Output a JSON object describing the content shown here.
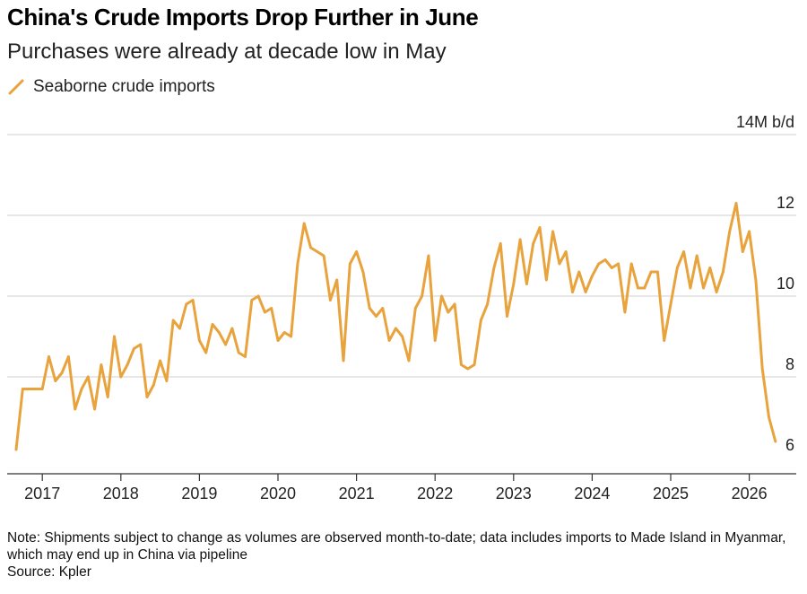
{
  "header": {
    "title": "China's Crude Imports Drop Further in June",
    "subtitle": "Purchases were already at decade low in May"
  },
  "legend": {
    "label": "Seaborne crude imports"
  },
  "footer": {
    "note": "Note: Shipments subject to change as volumes are observed month-to-date; data includes imports to Made Island in Myanmar, which may end up in China via pipeline",
    "source": "Source: Kpler"
  },
  "colors": {
    "series": "#e8a33d",
    "grid": "#cfcfcf",
    "axis": "#333333"
  },
  "chart_data": {
    "type": "line",
    "title": "China's Crude Imports Drop Further in June",
    "subtitle": "Purchases were already at decade low in May",
    "unit_label": "14M b/d",
    "ylim": [
      6,
      14
    ],
    "y_ticks": [
      {
        "value": 14,
        "label": "14M b/d"
      },
      {
        "value": 12,
        "label": "12"
      },
      {
        "value": 10,
        "label": "10"
      },
      {
        "value": 8,
        "label": "8"
      },
      {
        "value": 6,
        "label": "6"
      }
    ],
    "x_ticks": [
      "2017",
      "2018",
      "2019",
      "2020",
      "2021",
      "2022",
      "2023",
      "2024",
      "2025",
      "2026"
    ],
    "x_range": [
      "2016-09",
      "2026-06"
    ],
    "grid": true,
    "legend_position": "top-left",
    "series": [
      {
        "name": "Seaborne crude imports",
        "color": "#e8a33d",
        "points": [
          [
            "2016-09",
            6.2
          ],
          [
            "2016-10",
            7.7
          ],
          [
            "2016-11",
            7.7
          ],
          [
            "2016-12",
            7.7
          ],
          [
            "2017-01",
            7.7
          ],
          [
            "2017-02",
            8.5
          ],
          [
            "2017-03",
            7.9
          ],
          [
            "2017-04",
            8.1
          ],
          [
            "2017-05",
            8.5
          ],
          [
            "2017-06",
            7.2
          ],
          [
            "2017-07",
            7.7
          ],
          [
            "2017-08",
            8.0
          ],
          [
            "2017-09",
            7.2
          ],
          [
            "2017-10",
            8.3
          ],
          [
            "2017-11",
            7.5
          ],
          [
            "2017-12",
            9.0
          ],
          [
            "2018-01",
            8.0
          ],
          [
            "2018-02",
            8.3
          ],
          [
            "2018-03",
            8.7
          ],
          [
            "2018-04",
            8.8
          ],
          [
            "2018-05",
            7.5
          ],
          [
            "2018-06",
            7.8
          ],
          [
            "2018-07",
            8.4
          ],
          [
            "2018-08",
            7.9
          ],
          [
            "2018-09",
            9.4
          ],
          [
            "2018-10",
            9.2
          ],
          [
            "2018-11",
            9.8
          ],
          [
            "2018-12",
            9.9
          ],
          [
            "2019-01",
            8.9
          ],
          [
            "2019-02",
            8.6
          ],
          [
            "2019-03",
            9.3
          ],
          [
            "2019-04",
            9.1
          ],
          [
            "2019-05",
            8.8
          ],
          [
            "2019-06",
            9.2
          ],
          [
            "2019-07",
            8.6
          ],
          [
            "2019-08",
            8.5
          ],
          [
            "2019-09",
            9.9
          ],
          [
            "2019-10",
            10.0
          ],
          [
            "2019-11",
            9.6
          ],
          [
            "2019-12",
            9.7
          ],
          [
            "2020-01",
            8.9
          ],
          [
            "2020-02",
            9.1
          ],
          [
            "2020-03",
            9.0
          ],
          [
            "2020-04",
            10.8
          ],
          [
            "2020-05",
            11.8
          ],
          [
            "2020-06",
            11.2
          ],
          [
            "2020-07",
            11.1
          ],
          [
            "2020-08",
            11.0
          ],
          [
            "2020-09",
            9.9
          ],
          [
            "2020-10",
            10.4
          ],
          [
            "2020-11",
            8.4
          ],
          [
            "2020-12",
            10.8
          ],
          [
            "2021-01",
            11.1
          ],
          [
            "2021-02",
            10.6
          ],
          [
            "2021-03",
            9.7
          ],
          [
            "2021-04",
            9.5
          ],
          [
            "2021-05",
            9.7
          ],
          [
            "2021-06",
            8.9
          ],
          [
            "2021-07",
            9.2
          ],
          [
            "2021-08",
            9.0
          ],
          [
            "2021-09",
            8.4
          ],
          [
            "2021-10",
            9.7
          ],
          [
            "2021-11",
            10.0
          ],
          [
            "2021-12",
            11.0
          ],
          [
            "2022-01",
            8.9
          ],
          [
            "2022-02",
            10.0
          ],
          [
            "2022-03",
            9.6
          ],
          [
            "2022-04",
            9.8
          ],
          [
            "2022-05",
            8.3
          ],
          [
            "2022-06",
            8.2
          ],
          [
            "2022-07",
            8.3
          ],
          [
            "2022-08",
            9.4
          ],
          [
            "2022-09",
            9.8
          ],
          [
            "2022-10",
            10.7
          ],
          [
            "2022-11",
            11.3
          ],
          [
            "2022-12",
            9.5
          ],
          [
            "2023-01",
            10.3
          ],
          [
            "2023-02",
            11.4
          ],
          [
            "2023-03",
            10.3
          ],
          [
            "2023-04",
            11.3
          ],
          [
            "2023-05",
            11.7
          ],
          [
            "2023-06",
            10.4
          ],
          [
            "2023-07",
            11.6
          ],
          [
            "2023-08",
            10.8
          ],
          [
            "2023-09",
            11.1
          ],
          [
            "2023-10",
            10.1
          ],
          [
            "2023-11",
            10.6
          ],
          [
            "2023-12",
            10.1
          ],
          [
            "2024-01",
            10.5
          ],
          [
            "2024-02",
            10.8
          ],
          [
            "2024-03",
            10.9
          ],
          [
            "2024-04",
            10.7
          ],
          [
            "2024-05",
            10.8
          ],
          [
            "2024-06",
            9.6
          ],
          [
            "2024-07",
            10.8
          ],
          [
            "2024-08",
            10.2
          ],
          [
            "2024-09",
            10.2
          ],
          [
            "2024-10",
            10.6
          ],
          [
            "2024-11",
            10.6
          ],
          [
            "2024-12",
            8.9
          ],
          [
            "2025-01",
            9.8
          ],
          [
            "2025-02",
            10.7
          ],
          [
            "2025-03",
            11.1
          ],
          [
            "2025-04",
            10.2
          ],
          [
            "2025-05",
            11.0
          ],
          [
            "2025-06",
            10.2
          ],
          [
            "2025-07",
            10.7
          ],
          [
            "2025-08",
            10.1
          ],
          [
            "2025-09",
            10.6
          ],
          [
            "2025-10",
            11.6
          ],
          [
            "2025-11",
            12.3
          ],
          [
            "2025-12",
            11.1
          ],
          [
            "2026-01",
            11.6
          ],
          [
            "2026-02",
            10.4
          ],
          [
            "2026-03",
            8.2
          ],
          [
            "2026-04",
            7.0
          ],
          [
            "2026-05",
            6.4
          ]
        ]
      }
    ]
  }
}
